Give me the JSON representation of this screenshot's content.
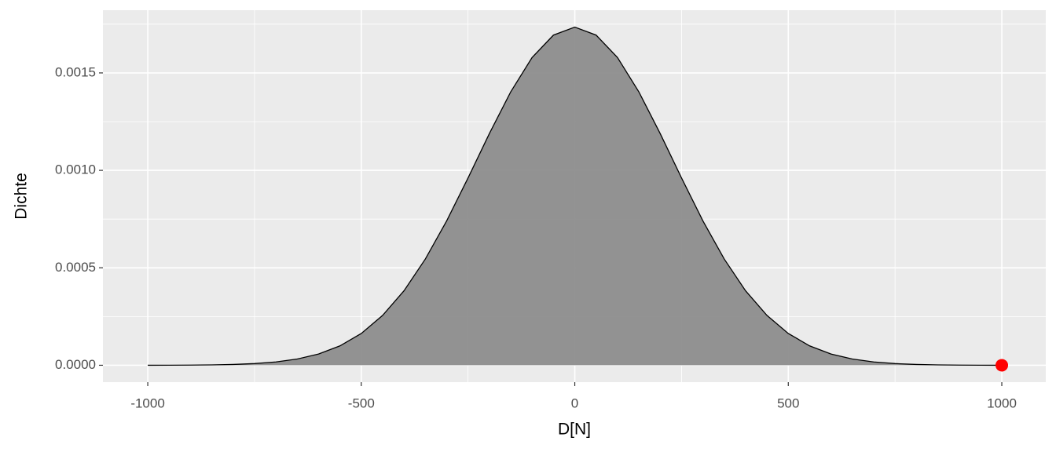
{
  "chart_data": {
    "type": "area",
    "x_label": "D[N]",
    "y_label": "Dichte",
    "x": [
      -1000,
      -950,
      -900,
      -850,
      -800,
      -750,
      -700,
      -650,
      -600,
      -550,
      -500,
      -450,
      -400,
      -350,
      -300,
      -250,
      -200,
      -150,
      -100,
      -50,
      0,
      50,
      100,
      150,
      200,
      250,
      300,
      350,
      400,
      450,
      500,
      550,
      600,
      650,
      700,
      750,
      800,
      850,
      900,
      950,
      1000
    ],
    "values": [
      1e-07,
      3e-07,
      8e-07,
      1.9e-06,
      4.1e-06,
      8.5e-06,
      1.69e-05,
      3.2e-05,
      5.77e-05,
      9.94e-05,
      0.000163,
      0.000256,
      0.000382,
      0.000545,
      0.000741,
      0.000961,
      0.001189,
      0.001403,
      0.001579,
      0.001694,
      0.001735,
      0.001694,
      0.001579,
      0.001403,
      0.001189,
      0.000961,
      0.000741,
      0.000545,
      0.000382,
      0.000256,
      0.000163,
      9.94e-05,
      5.77e-05,
      3.2e-05,
      1.69e-05,
      8.5e-06,
      4.1e-06,
      1.9e-06,
      8e-07,
      3e-07,
      1e-07
    ],
    "fill": "#8d8d8d",
    "line_color": "#000000",
    "highlight": {
      "x": 1000,
      "y": 0,
      "color": "#ff0000"
    },
    "xlim": [
      -1105,
      1103
    ],
    "ylim": [
      -8.68e-05,
      0.0018218
    ],
    "xticks": [
      -1000,
      -500,
      0,
      500,
      1000
    ],
    "yticks": [
      {
        "value": 0,
        "label": "0.0000"
      },
      {
        "value": 0.0005,
        "label": "0.0005"
      },
      {
        "value": 0.001,
        "label": "0.0010"
      },
      {
        "value": 0.0015,
        "label": "0.0015"
      }
    ],
    "minor_xticks": [
      -750,
      -250,
      250,
      750
    ],
    "minor_yticks": [
      0.00025,
      0.00075,
      0.00125,
      0.00175
    ],
    "grid": true
  }
}
